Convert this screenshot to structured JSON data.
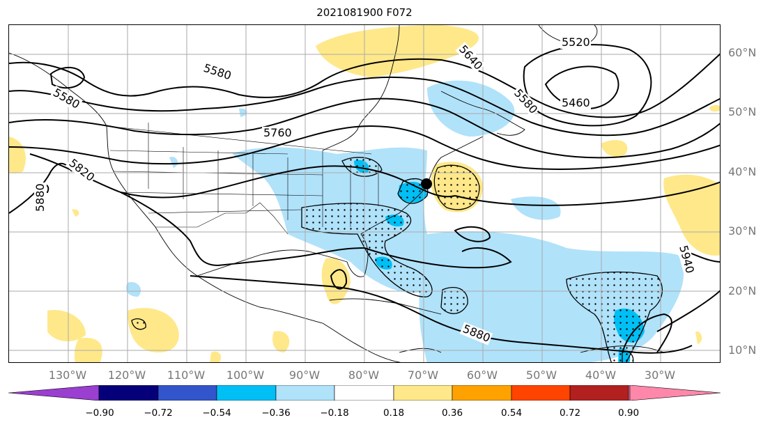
{
  "title": "2021081900 F072",
  "lat_labels": [
    "60°N",
    "50°N",
    "40°N",
    "30°N",
    "20°N",
    "10°N"
  ],
  "lon_labels": [
    "130°W",
    "120°W",
    "110°W",
    "100°W",
    "90°W",
    "80°W",
    "70°W",
    "60°W",
    "50°W",
    "40°W",
    "30°W"
  ],
  "contour_labels": [
    "5520",
    "5460",
    "5580",
    "5640",
    "5580",
    "5580",
    "5760",
    "5820",
    "5880",
    "5880",
    "5940"
  ],
  "colorbar": {
    "ticks": [
      "−0.90",
      "−0.72",
      "−0.54",
      "−0.36",
      "−0.18",
      "0.18",
      "0.36",
      "0.54",
      "0.72",
      "0.90"
    ],
    "colors": [
      "#9a3fd0",
      "#05007a",
      "#3355cc",
      "#00bff5",
      "#b0e2fa",
      "#ffffff",
      "#ffe88a",
      "#ffa200",
      "#ff4400",
      "#b22020",
      "#ff88aa"
    ]
  }
}
